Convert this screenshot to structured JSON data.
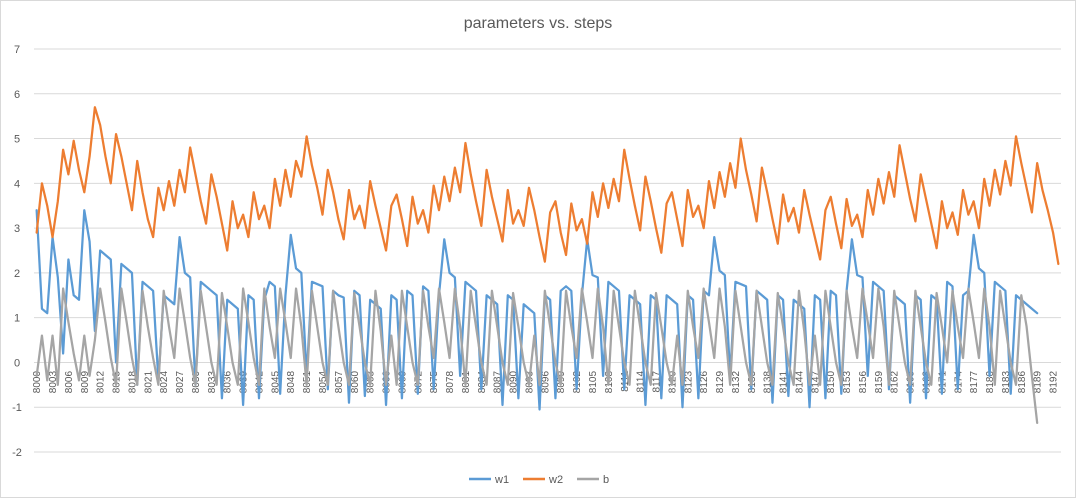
{
  "chart_data": {
    "type": "line",
    "title": "parameters vs. steps",
    "xlabel": "",
    "ylabel": "",
    "ylim": [
      -2,
      7
    ],
    "y_ticks": [
      -2,
      -1,
      0,
      1,
      2,
      3,
      4,
      5,
      6,
      7
    ],
    "grid": true,
    "legend_position": "bottom",
    "x_start": 8000,
    "x_end": 8193,
    "x_tick_step": 3,
    "series": [
      {
        "name": "w1",
        "color": "#5b9bd5",
        "values": [
          3.4,
          1.2,
          1.1,
          2.8,
          1.9,
          0.2,
          2.3,
          1.5,
          1.4,
          3.4,
          2.7,
          0.7,
          2.5,
          2.4,
          2.3,
          0.0,
          2.2,
          2.1,
          2.0,
          -0.5,
          1.8,
          1.7,
          1.6,
          -0.4,
          1.5,
          1.4,
          1.3,
          2.8,
          2.0,
          1.9,
          -0.5,
          1.8,
          1.7,
          1.6,
          1.5,
          -0.8,
          1.4,
          1.3,
          1.2,
          -0.95,
          1.5,
          1.4,
          -0.8,
          1.4,
          1.8,
          1.7,
          -0.7,
          1.5,
          2.85,
          2.1,
          2.0,
          -0.3,
          1.8,
          1.75,
          1.7,
          -0.6,
          1.6,
          1.5,
          1.45,
          -0.9,
          1.6,
          1.5,
          -0.75,
          1.4,
          1.3,
          1.2,
          -0.95,
          1.5,
          1.4,
          -0.8,
          1.6,
          1.5,
          -0.7,
          1.7,
          1.6,
          -0.6,
          1.5,
          2.75,
          2.0,
          1.9,
          -0.3,
          1.8,
          1.7,
          1.6,
          -0.6,
          1.5,
          1.4,
          1.3,
          -0.95,
          1.5,
          1.4,
          -0.8,
          1.3,
          1.2,
          1.1,
          -1.05,
          1.5,
          1.4,
          -0.8,
          1.6,
          1.7,
          1.6,
          -0.6,
          1.5,
          2.75,
          1.95,
          1.9,
          -0.3,
          1.8,
          1.7,
          1.6,
          -0.6,
          1.5,
          1.4,
          1.3,
          -0.95,
          1.5,
          1.4,
          -0.8,
          1.5,
          1.4,
          1.3,
          -1.0,
          1.5,
          1.4,
          -0.8,
          1.6,
          1.5,
          2.8,
          2.05,
          1.95,
          -0.3,
          1.8,
          1.75,
          1.7,
          -0.6,
          1.6,
          1.5,
          1.4,
          -0.9,
          1.5,
          1.4,
          -0.75,
          1.4,
          1.3,
          1.2,
          -1.0,
          1.5,
          1.4,
          -0.8,
          1.6,
          1.5,
          -0.7,
          1.6,
          2.75,
          1.95,
          1.9,
          -0.3,
          1.8,
          1.7,
          1.6,
          -0.6,
          1.5,
          1.4,
          1.3,
          -0.9,
          1.5,
          1.4,
          -0.8,
          1.5,
          1.4,
          -0.7,
          1.8,
          1.7,
          -0.6,
          1.5,
          1.6,
          2.85,
          2.1,
          2.0,
          -0.3,
          1.8,
          1.7,
          1.6,
          -0.7,
          1.5,
          1.4,
          1.3,
          1.2,
          1.1
        ]
      },
      {
        "name": "w2",
        "color": "#ed7d31",
        "values": [
          2.9,
          4.0,
          3.5,
          2.8,
          3.6,
          4.75,
          4.2,
          4.95,
          4.3,
          3.8,
          4.6,
          5.7,
          5.3,
          4.6,
          4.0,
          5.1,
          4.6,
          4.0,
          3.4,
          4.5,
          3.8,
          3.2,
          2.8,
          3.9,
          3.4,
          4.05,
          3.5,
          4.3,
          3.8,
          4.8,
          4.2,
          3.6,
          3.1,
          4.2,
          3.7,
          3.1,
          2.5,
          3.6,
          3.0,
          3.3,
          2.8,
          3.8,
          3.2,
          3.5,
          3.0,
          4.1,
          3.5,
          4.3,
          3.7,
          4.5,
          4.15,
          5.05,
          4.4,
          3.9,
          3.3,
          4.3,
          3.8,
          3.2,
          2.75,
          3.85,
          3.2,
          3.5,
          3.0,
          4.05,
          3.5,
          3.0,
          2.5,
          3.5,
          3.75,
          3.2,
          2.6,
          3.7,
          3.1,
          3.4,
          2.9,
          3.95,
          3.4,
          4.15,
          3.6,
          4.35,
          3.8,
          4.9,
          4.2,
          3.6,
          3.05,
          4.3,
          3.7,
          3.2,
          2.7,
          3.85,
          3.1,
          3.4,
          3.05,
          3.9,
          3.4,
          2.8,
          2.25,
          3.35,
          3.6,
          2.9,
          2.4,
          3.55,
          2.95,
          3.2,
          2.65,
          3.8,
          3.25,
          4.0,
          3.45,
          4.1,
          3.6,
          4.75,
          4.1,
          3.5,
          2.95,
          4.15,
          3.6,
          3.0,
          2.45,
          3.55,
          3.8,
          3.2,
          2.6,
          3.85,
          3.25,
          3.5,
          3.0,
          4.05,
          3.45,
          4.25,
          3.7,
          4.45,
          3.9,
          5.0,
          4.3,
          3.75,
          3.15,
          4.35,
          3.8,
          3.2,
          2.65,
          3.75,
          3.15,
          3.45,
          2.9,
          3.85,
          3.3,
          2.8,
          2.3,
          3.4,
          3.7,
          3.1,
          2.55,
          3.65,
          3.05,
          3.3,
          2.8,
          3.85,
          3.3,
          4.1,
          3.55,
          4.25,
          3.7,
          4.85,
          4.25,
          3.65,
          3.15,
          4.2,
          3.65,
          3.1,
          2.55,
          3.6,
          3.0,
          3.35,
          2.85,
          3.85,
          3.3,
          3.6,
          3.0,
          4.1,
          3.5,
          4.3,
          3.75,
          4.5,
          3.95,
          5.05,
          4.45,
          3.9,
          3.35,
          4.45,
          3.85,
          3.4,
          2.9,
          2.2
        ]
      },
      {
        "name": "b",
        "color": "#a5a5a5",
        "values": [
          -0.3,
          0.6,
          -0.4,
          0.6,
          -0.5,
          1.65,
          0.9,
          0.2,
          -0.4,
          0.6,
          -0.3,
          0.5,
          1.65,
          0.9,
          0.1,
          -0.5,
          1.65,
          0.9,
          0.1,
          -0.5,
          1.6,
          0.8,
          0.1,
          -0.5,
          1.6,
          0.8,
          0.1,
          1.65,
          0.9,
          0.1,
          -0.5,
          1.6,
          0.8,
          0.0,
          -0.5,
          1.55,
          0.8,
          0.0,
          -0.5,
          1.65,
          0.9,
          0.1,
          -0.5,
          1.65,
          0.8,
          0.1,
          1.65,
          0.9,
          0.1,
          1.65,
          0.8,
          -0.5,
          1.6,
          0.8,
          0.0,
          -0.5,
          1.6,
          0.8,
          0.0,
          -0.5,
          1.55,
          0.8,
          0.0,
          -0.5,
          1.6,
          0.7,
          -0.5,
          0.6,
          -0.5,
          1.6,
          0.8,
          0.0,
          -0.5,
          1.6,
          0.8,
          0.1,
          1.65,
          0.9,
          0.1,
          1.65,
          0.8,
          -0.5,
          1.6,
          0.8,
          0.0,
          -0.5,
          1.6,
          0.8,
          0.0,
          -0.5,
          1.55,
          0.8,
          0.0,
          -0.5,
          0.6,
          -0.5,
          1.6,
          0.8,
          0.0,
          -0.5,
          1.6,
          0.8,
          0.1,
          1.65,
          0.9,
          0.1,
          1.65,
          0.8,
          -0.5,
          1.6,
          0.8,
          0.0,
          -0.5,
          1.6,
          0.8,
          0.0,
          -0.5,
          1.55,
          0.8,
          0.0,
          -0.5,
          0.6,
          -0.5,
          1.6,
          0.8,
          0.1,
          1.65,
          0.9,
          0.1,
          1.65,
          0.8,
          -0.5,
          1.6,
          0.8,
          0.0,
          -0.5,
          1.6,
          0.8,
          0.0,
          -0.5,
          1.55,
          0.8,
          0.0,
          -0.5,
          1.6,
          0.7,
          -0.5,
          0.6,
          -0.5,
          1.6,
          0.8,
          0.0,
          -0.5,
          1.6,
          0.8,
          0.1,
          1.65,
          0.9,
          0.1,
          1.65,
          0.8,
          -0.5,
          1.6,
          0.8,
          0.0,
          -0.5,
          1.6,
          0.8,
          0.0,
          -0.5,
          1.55,
          0.8,
          0.0,
          1.6,
          0.8,
          0.1,
          1.65,
          0.9,
          0.1,
          1.65,
          0.8,
          -0.5,
          1.6,
          0.8,
          0.0,
          -0.5,
          1.5,
          0.8,
          -0.3,
          -1.35
        ]
      }
    ]
  }
}
